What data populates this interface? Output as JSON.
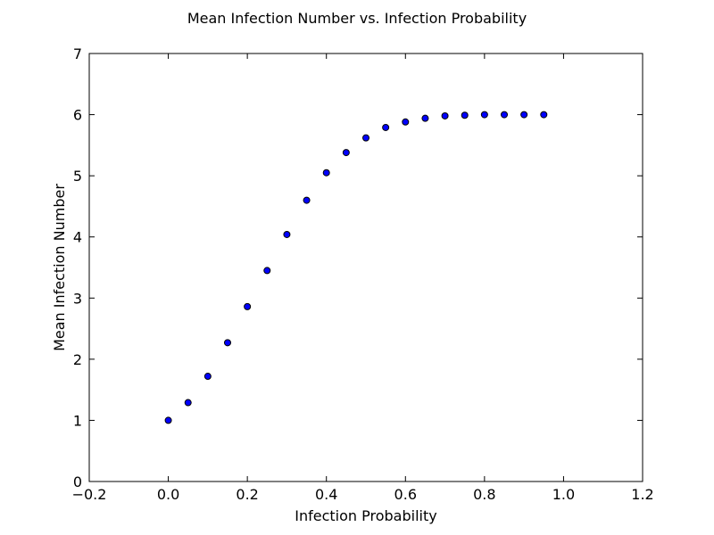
{
  "chart_data": {
    "type": "scatter",
    "title": "Mean Infection Number vs. Infection Probability",
    "xlabel": "Infection Probability",
    "ylabel": "Mean Infection Number",
    "xlim": [
      -0.2,
      1.2
    ],
    "ylim": [
      0,
      7
    ],
    "grid": false,
    "xticks": [
      -0.2,
      0.0,
      0.2,
      0.4,
      0.6,
      0.8,
      1.0,
      1.2
    ],
    "xtick_labels": [
      "−0.2",
      "0.0",
      "0.2",
      "0.4",
      "0.6",
      "0.8",
      "1.0",
      "1.2"
    ],
    "yticks": [
      0,
      1,
      2,
      3,
      4,
      5,
      6,
      7
    ],
    "ytick_labels": [
      "0",
      "1",
      "2",
      "3",
      "4",
      "5",
      "6",
      "7"
    ],
    "marker_color": "#0000ff",
    "series": [
      {
        "x": [
          0.0,
          0.05,
          0.1,
          0.15,
          0.2,
          0.25,
          0.3,
          0.35,
          0.4,
          0.45,
          0.5,
          0.55,
          0.6,
          0.65,
          0.7,
          0.75,
          0.8,
          0.85,
          0.9,
          0.95
        ],
        "y": [
          1.0,
          1.29,
          1.72,
          2.27,
          2.86,
          3.45,
          4.04,
          4.6,
          5.05,
          5.38,
          5.62,
          5.79,
          5.88,
          5.94,
          5.98,
          5.99,
          6.0,
          6.0,
          6.0,
          6.0
        ]
      }
    ]
  }
}
